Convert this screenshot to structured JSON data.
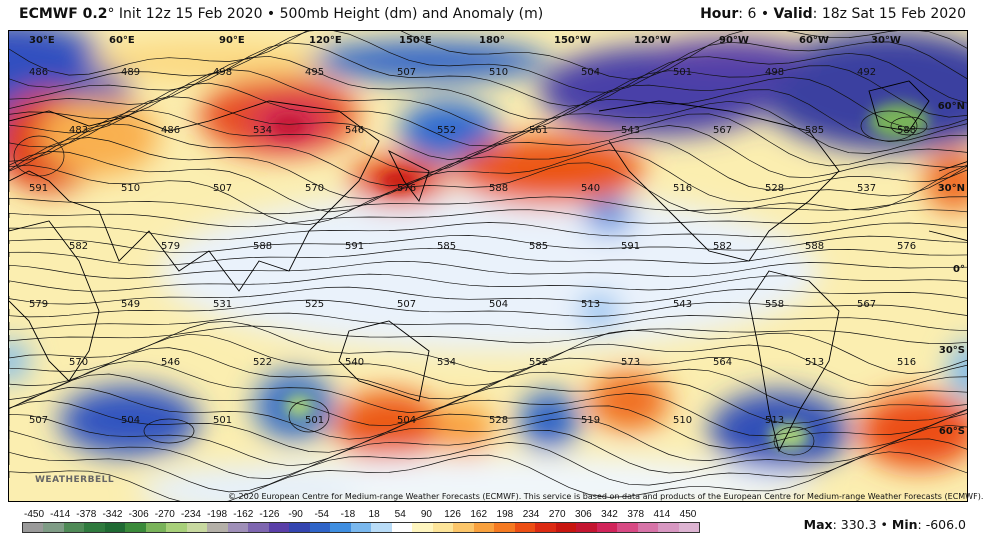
{
  "header": {
    "model": "ECMWF 0.2",
    "degree": "°",
    "description": " Init 12z 15 Feb 2020 • 500mb Height (dm) and Anomaly (m)",
    "hour_label": "Hour",
    "hour_value": ": 6 • ",
    "valid_label": "Valid",
    "valid_value": ": 18z Sat 15 Feb 2020"
  },
  "map": {
    "longitude_labels": [
      "30°E",
      "60°E",
      "90°E",
      "120°E",
      "150°E",
      "180°",
      "150°W",
      "120°W",
      "90°W",
      "60°W",
      "30°W"
    ],
    "latitude_labels": [
      "60°N",
      "30°N",
      "0°",
      "30°S",
      "60°S"
    ],
    "contour_labels": [
      "486",
      "489",
      "498",
      "495",
      "507",
      "510",
      "504",
      "501",
      "498",
      "492",
      "483",
      "486",
      "534",
      "546",
      "552",
      "561",
      "543",
      "567",
      "585",
      "588",
      "591",
      "510",
      "507",
      "570",
      "576",
      "588",
      "540",
      "516",
      "528",
      "537",
      "582",
      "579",
      "588",
      "591",
      "585",
      "585",
      "591",
      "582",
      "588",
      "576",
      "579",
      "549",
      "531",
      "525",
      "507",
      "504",
      "513",
      "543",
      "558",
      "567",
      "570",
      "546",
      "522",
      "540",
      "534",
      "552",
      "573",
      "564",
      "513",
      "516",
      "507",
      "504",
      "501",
      "501",
      "504",
      "528",
      "519",
      "510",
      "513"
    ],
    "copyright": "© 2020 European Centre for Medium-range Weather Forecasts (ECMWF). This service is based on data and products of the European Centre for Medium-range Weather Forecasts (ECMWF).",
    "logo_text": "WEATHERBELL"
  },
  "colorbar": {
    "ticks": [
      "-450",
      "-414",
      "-378",
      "-342",
      "-306",
      "-270",
      "-234",
      "-198",
      "-162",
      "-126",
      "-90",
      "-54",
      "-18",
      "18",
      "54",
      "90",
      "126",
      "162",
      "198",
      "234",
      "270",
      "306",
      "342",
      "378",
      "414",
      "450"
    ],
    "colors": [
      "#9a9a9a",
      "#7f9c86",
      "#4f8a57",
      "#2f7a3e",
      "#1f6a33",
      "#3a8a3a",
      "#79b35a",
      "#a8d07a",
      "#c8d9a0",
      "#b4b0a8",
      "#9f8fb8",
      "#7e66b0",
      "#5a3fa8",
      "#3445b0",
      "#2f64c8",
      "#3f8ee0",
      "#7ab8ee",
      "#b9dcf7",
      "#ffffff",
      "#fff6c0",
      "#fde59a",
      "#fcc66a",
      "#f9a13e",
      "#f57a22",
      "#ec4e14",
      "#dc2a12",
      "#c8150f",
      "#c41530",
      "#d1245a",
      "#d84a84",
      "#d774a8",
      "#d898c2",
      "#ddb4d2"
    ],
    "max_label": "Max",
    "max_value": ": 330.3 • ",
    "min_label": "Min",
    "min_value": ": -606.0"
  }
}
